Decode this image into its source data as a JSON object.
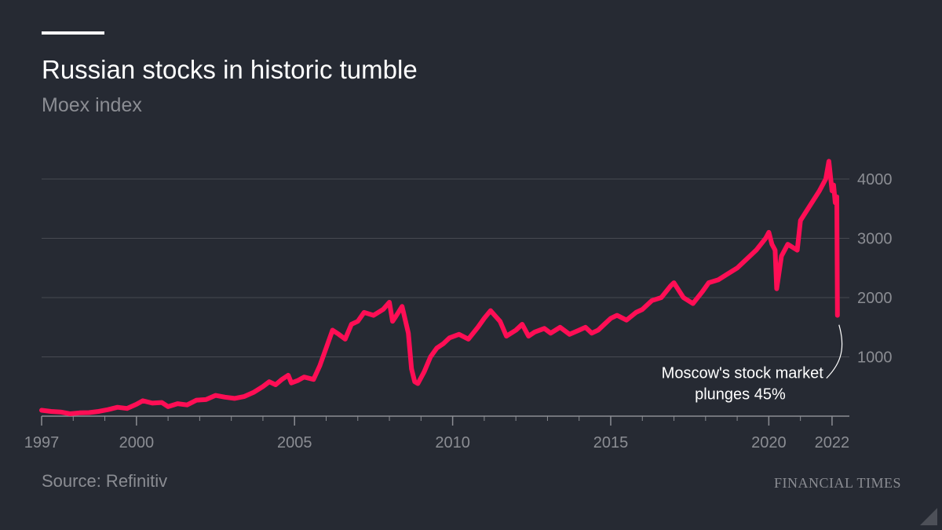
{
  "header": {
    "title": "Russian stocks in historic tumble",
    "subtitle": "Moex index"
  },
  "footer": {
    "source": "Source: Refinitiv",
    "brand": "FINANCIAL TIMES"
  },
  "colors": {
    "background": "#262a33",
    "line": "#ff0e55",
    "grid": "#474a52",
    "muted_text": "#8b8d93",
    "annotation_text": "#ffffff"
  },
  "chart_data": {
    "type": "line",
    "title": "Russian stocks in historic tumble",
    "subtitle": "Moex index",
    "xlabel": "",
    "ylabel": "",
    "xlim": [
      1997.0,
      2022.25
    ],
    "ylim": [
      0,
      4000
    ],
    "y_ticks": [
      1000,
      2000,
      3000,
      4000
    ],
    "y_tick_labels": [
      "1000",
      "2000",
      "3000",
      "4000"
    ],
    "x_ticks": [
      1997,
      2000,
      2005,
      2010,
      2015,
      2020,
      2022
    ],
    "x_tick_labels": [
      "1997",
      "2000",
      "2005",
      "2010",
      "2015",
      "2020",
      "2022"
    ],
    "y_axis_position": "right",
    "grid": true,
    "annotations": [
      {
        "lines": [
          "Moscow's stock market",
          "plunges 45%"
        ],
        "x": 2022.17,
        "y": 1700
      }
    ],
    "series": [
      {
        "x": [
          1997.0,
          1997.3,
          1997.6,
          1997.9,
          1998.2,
          1998.5,
          1998.8,
          1999.1,
          1999.4,
          1999.7,
          2000.0,
          2000.2,
          2000.5,
          2000.8,
          2001.0,
          2001.3,
          2001.6,
          2001.9,
          2002.2,
          2002.5,
          2002.8,
          2003.1,
          2003.4,
          2003.7,
          2004.0,
          2004.2,
          2004.4,
          2004.6,
          2004.8,
          2004.9,
          2005.1,
          2005.3,
          2005.6,
          2005.8,
          2006.0,
          2006.2,
          2006.4,
          2006.6,
          2006.8,
          2007.0,
          2007.2,
          2007.5,
          2007.8,
          2008.0,
          2008.1,
          2008.2,
          2008.4,
          2008.6,
          2008.7,
          2008.8,
          2008.9,
          2009.1,
          2009.3,
          2009.5,
          2009.7,
          2009.9,
          2010.2,
          2010.5,
          2010.8,
          2011.0,
          2011.2,
          2011.5,
          2011.7,
          2012.0,
          2012.2,
          2012.4,
          2012.6,
          2012.9,
          2013.1,
          2013.4,
          2013.7,
          2014.0,
          2014.2,
          2014.4,
          2014.6,
          2014.8,
          2015.0,
          2015.2,
          2015.5,
          2015.8,
          2016.0,
          2016.3,
          2016.6,
          2016.9,
          2017.0,
          2017.3,
          2017.6,
          2017.9,
          2018.1,
          2018.4,
          2018.7,
          2019.0,
          2019.3,
          2019.6,
          2019.9,
          2020.0,
          2020.1,
          2020.2,
          2020.25,
          2020.4,
          2020.6,
          2020.9,
          2021.0,
          2021.3,
          2021.6,
          2021.8,
          2021.9,
          2022.0,
          2022.05,
          2022.1,
          2022.15,
          2022.17
        ],
        "y": [
          100,
          80,
          70,
          40,
          55,
          60,
          80,
          110,
          150,
          130,
          200,
          260,
          220,
          230,
          160,
          210,
          190,
          270,
          280,
          350,
          320,
          300,
          330,
          400,
          500,
          580,
          530,
          620,
          690,
          560,
          600,
          660,
          620,
          850,
          1150,
          1450,
          1380,
          1300,
          1550,
          1600,
          1750,
          1700,
          1800,
          1920,
          1600,
          1680,
          1850,
          1400,
          800,
          580,
          550,
          750,
          1000,
          1150,
          1220,
          1320,
          1380,
          1300,
          1500,
          1650,
          1780,
          1600,
          1350,
          1450,
          1550,
          1350,
          1420,
          1480,
          1400,
          1500,
          1380,
          1450,
          1500,
          1400,
          1450,
          1550,
          1650,
          1700,
          1620,
          1750,
          1800,
          1950,
          2000,
          2200,
          2250,
          2000,
          1900,
          2100,
          2250,
          2300,
          2400,
          2500,
          2650,
          2800,
          3000,
          3100,
          2900,
          2800,
          2150,
          2700,
          2900,
          2800,
          3300,
          3550,
          3800,
          4000,
          4300,
          3800,
          3900,
          3600,
          3700,
          1700
        ]
      }
    ]
  }
}
